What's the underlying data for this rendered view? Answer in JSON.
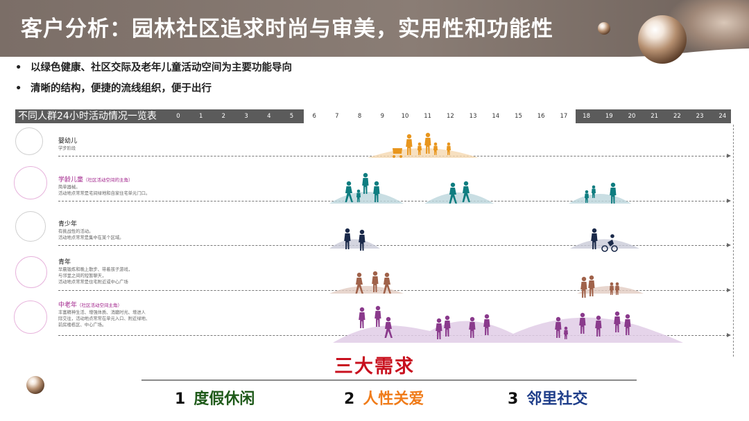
{
  "header": {
    "title": "客户分析：园林社区追求时尚与审美，实用性和功能性"
  },
  "bullets": [
    "以绿色健康、社区交际及老年儿童活动空间为主要功能导向",
    "清晰的结构，便捷的流线组织，便于出行"
  ],
  "timeline": {
    "title": "不同人群24小时活动情况一览表",
    "hours": [
      "0",
      "1",
      "2",
      "3",
      "4",
      "5",
      "6",
      "7",
      "8",
      "9",
      "10",
      "11",
      "12",
      "13",
      "14",
      "15",
      "16",
      "17",
      "18",
      "19",
      "20",
      "21",
      "22",
      "23",
      "24"
    ]
  },
  "groups": [
    {
      "name": "婴幼儿",
      "note": "",
      "desc": [
        "学步阶段"
      ],
      "color": "#e8961e"
    },
    {
      "name": "学龄儿童",
      "note": "（社区活动空间的主角）",
      "desc": [
        "简单器械。",
        "活动地点常常是宅间绿地和自家住宅单元门口。"
      ],
      "color": "#0f7d80"
    },
    {
      "name": "青少年",
      "note": "",
      "desc": [
        "有挑战性的活动。",
        "活动地点常常是集中在某个区域。"
      ],
      "color": "#1b2a4a"
    },
    {
      "name": "青年",
      "note": "",
      "desc": [
        "早晨锻炼和晚上散步、带着孩子游戏，",
        "与邻里之间的短暂聊天，",
        "活动地点常常是住宅附近或中心广场"
      ],
      "color": "#a0624a"
    },
    {
      "name": "中老年",
      "note": "（社区活动空间主角）",
      "desc": [
        "丰富精神生活、增强体质、消磨时光、增进人",
        "际交往，活动地点常常在单元入口、附近绿地、",
        "前房楼栋区、中心广场。"
      ],
      "color": "#8a3a8c"
    }
  ],
  "needs": {
    "title": "三大需求",
    "items": [
      {
        "num": "1",
        "label": "度假休闲",
        "color": "#1f5a1a"
      },
      {
        "num": "2",
        "label": "人性关爱",
        "color": "#f07c1a"
      },
      {
        "num": "3",
        "label": "邻里社交",
        "color": "#1f3e8a"
      }
    ]
  }
}
